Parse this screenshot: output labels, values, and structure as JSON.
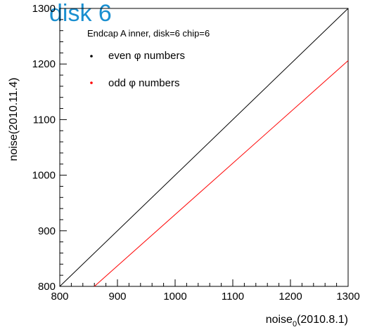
{
  "colors": {
    "title": "#1a8fd0",
    "axis": "#000000",
    "even": "#000000",
    "odd": "#ff0000"
  },
  "chart_data": {
    "type": "scatter",
    "title": "disk 6",
    "xlabel": {
      "main": "noise",
      "sub": "0",
      "rest": "(2010.8.1)"
    },
    "ylabel": "noise(2010.11.4)",
    "xlim": [
      800,
      1300
    ],
    "ylim": [
      800,
      1300
    ],
    "xticks": [
      "800",
      "900",
      "1000",
      "1100",
      "1200",
      "1300"
    ],
    "yticks": [
      "800",
      "900",
      "1000",
      "1100",
      "1200",
      "1300"
    ],
    "legend_title": "Endcap A inner, disk=6 chip=6",
    "legend_position": "top-left",
    "grid": false,
    "series": [
      {
        "name": "even φ numbers",
        "color": "#000000",
        "x": [
          800,
          1300
        ],
        "y": [
          800,
          1300
        ]
      },
      {
        "name": "odd φ numbers",
        "color": "#ff0000",
        "x": [
          860,
          1300
        ],
        "y": [
          800,
          1206
        ]
      }
    ]
  }
}
